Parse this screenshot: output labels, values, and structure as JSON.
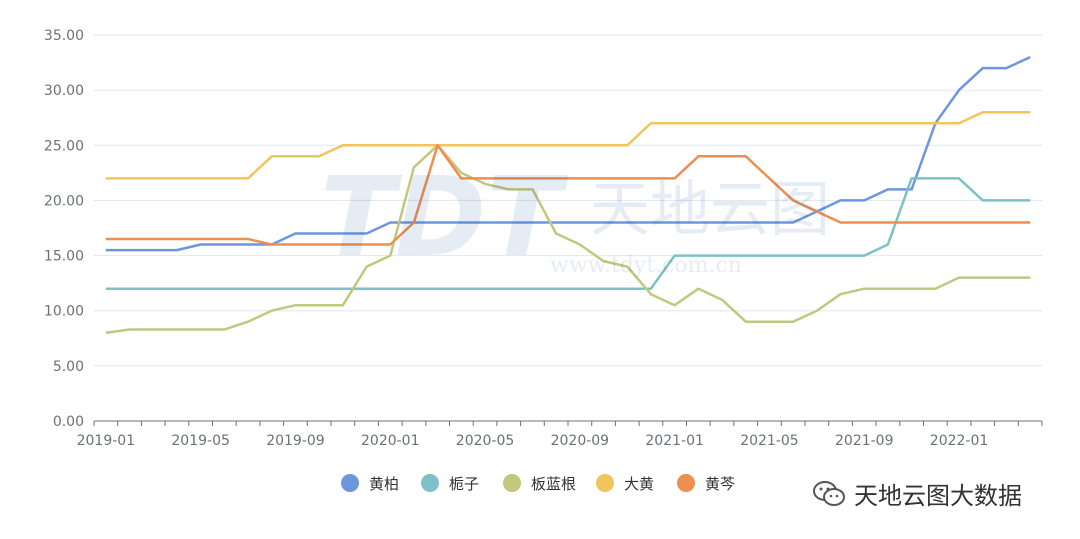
{
  "chart_data": {
    "type": "line",
    "x": [
      "2019-01",
      "2019-02",
      "2019-03",
      "2019-04",
      "2019-05",
      "2019-06",
      "2019-07",
      "2019-08",
      "2019-09",
      "2019-10",
      "2019-11",
      "2019-12",
      "2020-01",
      "2020-02",
      "2020-03",
      "2020-04",
      "2020-05",
      "2020-06",
      "2020-07",
      "2020-08",
      "2020-09",
      "2020-10",
      "2020-11",
      "2020-12",
      "2021-01",
      "2021-02",
      "2021-03",
      "2021-04",
      "2021-05",
      "2021-06",
      "2021-07",
      "2021-08",
      "2021-09",
      "2021-10",
      "2021-11",
      "2021-12",
      "2022-01",
      "2022-02",
      "2022-03",
      "2022-04"
    ],
    "x_tick_labels": [
      "2019-01",
      "2019-05",
      "2019-09",
      "2020-01",
      "2020-05",
      "2020-09",
      "2021-01",
      "2021-05",
      "2021-09",
      "2022-01"
    ],
    "y_tick_labels": [
      "0.00",
      "5.00",
      "10.00",
      "15.00",
      "20.00",
      "25.00",
      "30.00",
      "35.00"
    ],
    "ylim": [
      0,
      35
    ],
    "grid": true,
    "legend_position": "bottom-center",
    "series": [
      {
        "name": "黄柏",
        "color": "#6e96dc",
        "values": [
          15.5,
          15.5,
          15.5,
          15.5,
          16,
          16,
          16,
          16,
          17,
          17,
          17,
          17,
          18,
          18,
          18,
          18,
          18,
          18,
          18,
          18,
          18,
          18,
          18,
          18,
          18,
          18,
          18,
          18,
          18,
          18,
          19,
          20,
          20,
          21,
          21,
          27,
          30,
          32,
          32,
          33
        ]
      },
      {
        "name": "栀子",
        "color": "#7ec0c8",
        "values": [
          12,
          12,
          12,
          12,
          12,
          12,
          12,
          12,
          12,
          12,
          12,
          12,
          12,
          12,
          12,
          12,
          12,
          12,
          12,
          12,
          12,
          12,
          12,
          12,
          15,
          15,
          15,
          15,
          15,
          15,
          15,
          15,
          15,
          16,
          22,
          22,
          22,
          20,
          20,
          20
        ]
      },
      {
        "name": "板蓝根",
        "color": "#c2c77e",
        "values": [
          8,
          8.3,
          8.3,
          8.3,
          8.3,
          8.3,
          9,
          10,
          10.5,
          10.5,
          10.5,
          14,
          15,
          23,
          25,
          22.5,
          21.5,
          21,
          21,
          17,
          16,
          14.5,
          14,
          11.5,
          10.5,
          12,
          11,
          9,
          9,
          9,
          10,
          11.5,
          12,
          12,
          12,
          12,
          13,
          13,
          13,
          13
        ]
      },
      {
        "name": "大黄",
        "color": "#f2c55c",
        "values": [
          22,
          22,
          22,
          22,
          22,
          22,
          22,
          24,
          24,
          24,
          25,
          25,
          25,
          25,
          25,
          25,
          25,
          25,
          25,
          25,
          25,
          25,
          25,
          27,
          27,
          27,
          27,
          27,
          27,
          27,
          27,
          27,
          27,
          27,
          27,
          27,
          27,
          28,
          28,
          28
        ]
      },
      {
        "name": "黄芩",
        "color": "#ee8e50",
        "values": [
          16.5,
          16.5,
          16.5,
          16.5,
          16.5,
          16.5,
          16.5,
          16,
          16,
          16,
          16,
          16,
          16,
          18,
          25,
          22,
          22,
          22,
          22,
          22,
          22,
          22,
          22,
          22,
          22,
          24,
          24,
          24,
          22,
          20,
          19,
          18,
          18,
          18,
          18,
          18,
          18,
          18,
          18,
          18
        ]
      }
    ]
  },
  "watermark": {
    "text": "天地云图",
    "url": "www.tdyt.com.cn",
    "logo": "TDT"
  },
  "footer": {
    "text": "天地云图大数据",
    "icon": "wechat-icon"
  }
}
